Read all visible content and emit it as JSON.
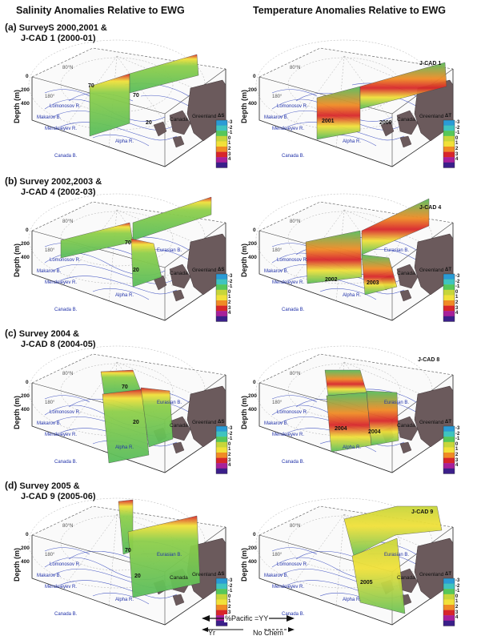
{
  "header": {
    "left_title": "Salinity Anomalies Relative to EWG",
    "right_title": "Temperature Anomalies Relative to EWG"
  },
  "rows": [
    {
      "letter": "(a)",
      "line1": "SurveyS 2000,2001 &",
      "line2": "J-CAD 1 (2000-01)",
      "left_marks": [
        "70",
        "70",
        "20"
      ],
      "right_marks": [
        "J-CAD 1",
        "2001",
        "2000"
      ]
    },
    {
      "letter": "(b)",
      "line1": "Survey 2002,2003 &",
      "line2": "J-CAD 4 (2002-03)",
      "left_marks": [
        "70",
        "20"
      ],
      "right_marks": [
        "J-CAD 4",
        "2003",
        "2002"
      ]
    },
    {
      "letter": "(c)",
      "line1": "Survey 2004 &",
      "line2": "J-CAD 8 (2004-05)",
      "left_marks": [
        "70",
        "20"
      ],
      "right_marks": [
        "J-CAD 8",
        "2004",
        "2004"
      ]
    },
    {
      "letter": "(d)",
      "line1": "Survey 2005 &",
      "line2": "J-CAD 9 (2005-06)",
      "left_marks": [
        "70",
        "20"
      ],
      "right_marks": [
        "J-CAD 9",
        "2005"
      ]
    }
  ],
  "axes": {
    "depth_label": "Depth (m)",
    "depth_ticks": [
      "0",
      "200",
      "400"
    ]
  },
  "map_labels": {
    "greenland": "Greenland",
    "canada": "Canada",
    "ridges": [
      "Lomonosov R.",
      "Makarov B.",
      "Mendeleyev R.",
      "Alpha R.",
      "Canada B.",
      "Eurasian B."
    ],
    "lat": "80°N",
    "lon": "180°"
  },
  "color_scale": {
    "salinity_unit": "ΔS",
    "temperature_unit": "ΔT",
    "labels": [
      "-3",
      "-2",
      "-1",
      "0",
      "1",
      "2",
      "3",
      "4"
    ],
    "colors": [
      "#2a9bd6",
      "#3fc4c0",
      "#56c75a",
      "#c7d63a",
      "#f1e13a",
      "#f08b25",
      "#d8262a",
      "#a8209a",
      "#3b1f8a"
    ]
  },
  "legend": {
    "arrow_text": "%Pacific =YY",
    "left_text": "Yr",
    "right_text": "No Chem"
  }
}
